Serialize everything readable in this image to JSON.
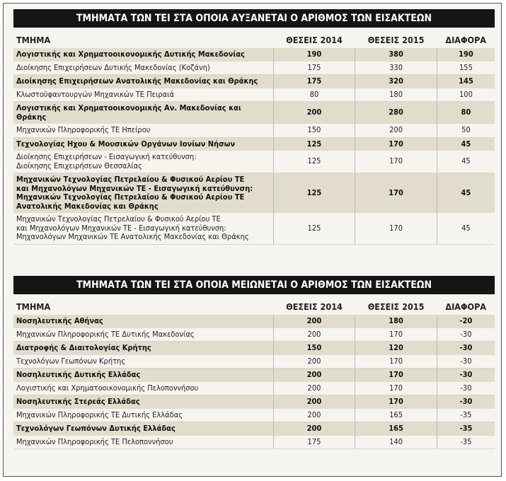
{
  "tables": [
    {
      "title": "ΤΜΗΜΑΤΑ ΤΩΝ ΤΕΙ ΣΤΑ ΟΠΟΙΑ ΑΥΞΑΝΕΤΑΙ Ο ΑΡΙΘΜΟΣ ΤΩΝ ΕΙΣΑΚΤΕΩΝ",
      "headers": [
        "ΤΜΗΜΑ",
        "ΘΕΣΕΙΣ 2014",
        "ΘΕΣΕΙΣ 2015",
        "ΔΙΑΦΟΡΑ"
      ],
      "rows": [
        [
          "Λογιστικής και Χρηματοοικονομικής Δυτικής Μακεδονίας",
          190,
          380,
          190
        ],
        [
          "Διοίκησης Επιχειρήσεων Δυτικής Μακεδονίας (Κοζάνη)",
          175,
          330,
          155
        ],
        [
          "Διοίκησης Επιχειρήσεων Ανατολικής Μακεδονίας και Θράκης",
          175,
          320,
          145
        ],
        [
          "Κλωστοϋφαντουργών Μηχανικών ΤΕ Πειραιά",
          80,
          180,
          100
        ],
        [
          "Λογιστικής και Χρηματοοικονομικής Αν. Μακεδονίας και Θράκης",
          200,
          280,
          80
        ],
        [
          "Μηχανικών Πληροφορικής ΤΕ Ηπείρου",
          150,
          200,
          50
        ],
        [
          "Τεχνολογίας Ηχου & Μουσικών Οργάνων Ιονίων Νήσων",
          125,
          170,
          45
        ],
        [
          "Διοίκησης Επιχειρήσεων - Εισαγωγική κατεύθυνση:\nΔιοίκησης Επιχειρήσεων Θεσσαλίας",
          125,
          170,
          45
        ],
        [
          "Μηχανικών Τεχνολογίας Πετρελαίου & Φυσικού Αερίου ΤΕ\nκαι Μηχανολόγων Μηχανικών ΤΕ - Εισαγωγική κατεύθυνση:\nΜηχανικών Τεχνολογίας Πετρελαίου & Φυσικού Αερίου ΤΕ\nΑνατολικής Μακεδονίας και Θράκης",
          125,
          170,
          45
        ],
        [
          "Μηχανικών Τεχνολογίας Πετρελαίου & Φυσικού Αερίου ΤΕ\nκαι Μηχανολόγων Μηχανικών ΤΕ - Εισαγωγική κατεύθυνση:\nΜηχανολόγων Μηχανικών ΤΕ Ανατολικής Μακεδονίας και Θράκης",
          125,
          170,
          45
        ]
      ]
    },
    {
      "title": "ΤΜΗΜΑΤΑ ΤΩΝ ΤΕΙ ΣΤΑ ΟΠΟΙΑ ΜΕΙΩΝΕΤΑΙ Ο ΑΡΙΘΜΟΣ ΤΩΝ ΕΙΣΑΚΤΕΩΝ",
      "headers": [
        "ΤΜΗΜΑ",
        "ΘΕΣΕΙΣ 2014",
        "ΘΕΣΕΙΣ 2015",
        "ΔΙΑΦΟΡΑ"
      ],
      "rows": [
        [
          "Νοσηλευτικής Αθήνας",
          200,
          180,
          -20
        ],
        [
          "Μηχανικών Πληροφορικής ΤΕ Δυτικής Μακεδονίας",
          200,
          170,
          -30
        ],
        [
          "Διατροφής & Διαιτολογίας Κρήτης",
          150,
          120,
          -30
        ],
        [
          "Τεχνολόγων Γεωπόνων Κρήτης",
          200,
          170,
          -30
        ],
        [
          "Νοσηλευτικής Δυτικής Ελλάδας",
          200,
          170,
          -30
        ],
        [
          "Λογιστικής και Χρηματοοικονομικής Πελοποννήσου",
          200,
          170,
          -30
        ],
        [
          "Νοσηλευτικής Στερεάς Ελλάδας",
          200,
          170,
          -30
        ],
        [
          "Μηχανικών Πληροφορικής ΤΕ Δυτικής Ελλάδας",
          200,
          165,
          -35
        ],
        [
          "Τεχνολόγων Γεωπόνων Δυτικής Ελλάδας",
          200,
          165,
          -35
        ],
        [
          "Μηχανικών Πληροφορικής ΤΕ Πελοποννήσου",
          175,
          140,
          -35
        ]
      ]
    }
  ]
}
